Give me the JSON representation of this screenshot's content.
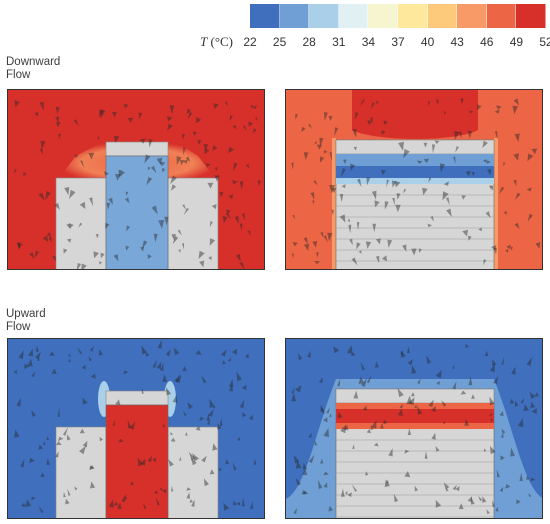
{
  "legend": {
    "variable": "T",
    "unit": "(°C)",
    "ticks": [
      "22",
      "25",
      "28",
      "31",
      "34",
      "37",
      "40",
      "43",
      "46",
      "49",
      "52"
    ],
    "colors": [
      "#3f6fbd",
      "#6f9fd4",
      "#a9cfe9",
      "#e1f0f3",
      "#f7f5cf",
      "#fde89b",
      "#fdc97a",
      "#f79a67",
      "#ec6545",
      "#d7302b"
    ]
  },
  "rows": [
    {
      "label_line1": "Downward",
      "label_line2": "Flow"
    },
    {
      "label_line1": "Upward",
      "label_line2": "Flow"
    }
  ]
}
